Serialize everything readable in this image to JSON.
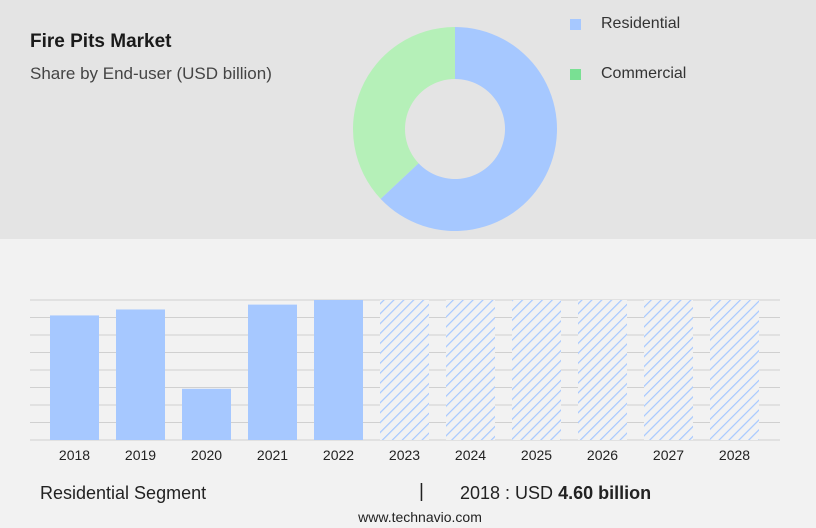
{
  "header": {
    "title": "Fire Pits Market",
    "subtitle": "Share by End-user (USD billion)"
  },
  "colors": {
    "residential": "#a6c8ff",
    "commercial": "#b5f0b8",
    "commercial_legend": "#79e093",
    "top_panel": "#e4e4e4",
    "grid": "#d0d0d0"
  },
  "legend": {
    "items": [
      {
        "label": "Residential",
        "color": "#a6c8ff"
      },
      {
        "label": "Commercial",
        "color": "#79e093"
      }
    ]
  },
  "footer": {
    "segment_label": "Residential Segment",
    "separator": "|",
    "value_prefix": "2018 : USD ",
    "value_bold": "4.60 billion"
  },
  "source": "www.technavio.com",
  "chart_data": [
    {
      "type": "pie",
      "title": "Share by End-user (USD billion)",
      "categories": [
        "Residential",
        "Commercial"
      ],
      "values": [
        63,
        37
      ],
      "donut": true
    },
    {
      "type": "bar",
      "categories": [
        "2018",
        "2019",
        "2020",
        "2021",
        "2022",
        "2023",
        "2024",
        "2025",
        "2026",
        "2027",
        "2028"
      ],
      "values": [
        4.6,
        4.82,
        1.89,
        5.0,
        5.17,
        5.17,
        5.17,
        5.17,
        5.17,
        5.17,
        5.17
      ],
      "forecast_from": "2023",
      "ylim": [
        0,
        5.17
      ],
      "grid": true,
      "xlabel": "",
      "ylabel": ""
    }
  ]
}
